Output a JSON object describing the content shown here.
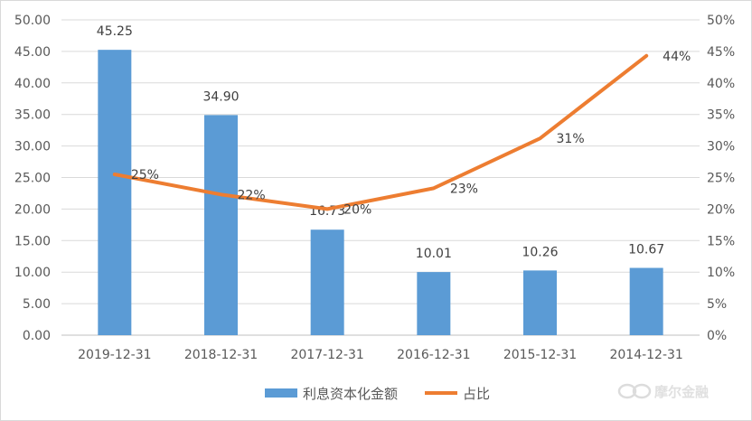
{
  "chart_data": {
    "type": "bar",
    "categories": [
      "2019-12-31",
      "2018-12-31",
      "2017-12-31",
      "2016-12-31",
      "2015-12-31",
      "2014-12-31"
    ],
    "series": [
      {
        "name": "利息资本化金额",
        "type": "bar",
        "axis": "left",
        "color": "#5b9bd5",
        "values": [
          45.25,
          34.9,
          16.73,
          10.01,
          10.26,
          10.67
        ],
        "labels": [
          "45.25",
          "34.90",
          "16.73",
          "10.01",
          "10.26",
          "10.67"
        ]
      },
      {
        "name": "占比",
        "type": "line",
        "axis": "right",
        "color": "#ed7d31",
        "values": [
          25.5,
          22.3,
          20.0,
          23.3,
          31.2,
          44.3
        ],
        "labels": [
          "25%",
          "22%",
          "20%",
          "23%",
          "31%",
          "44%"
        ]
      }
    ],
    "yleft": {
      "min": 0,
      "max": 50,
      "step": 5,
      "ticks": [
        "0.00",
        "5.00",
        "10.00",
        "15.00",
        "20.00",
        "25.00",
        "30.00",
        "35.00",
        "40.00",
        "45.00",
        "50.00"
      ]
    },
    "yright": {
      "min": 0,
      "max": 50,
      "step": 5,
      "ticks": [
        "0%",
        "5%",
        "10%",
        "15%",
        "20%",
        "25%",
        "30%",
        "35%",
        "40%",
        "45%",
        "50%"
      ]
    },
    "gridlines": true,
    "legend": "bottom"
  },
  "watermark": {
    "text": "摩尔金融",
    "icon": "infinity-logo-icon"
  }
}
